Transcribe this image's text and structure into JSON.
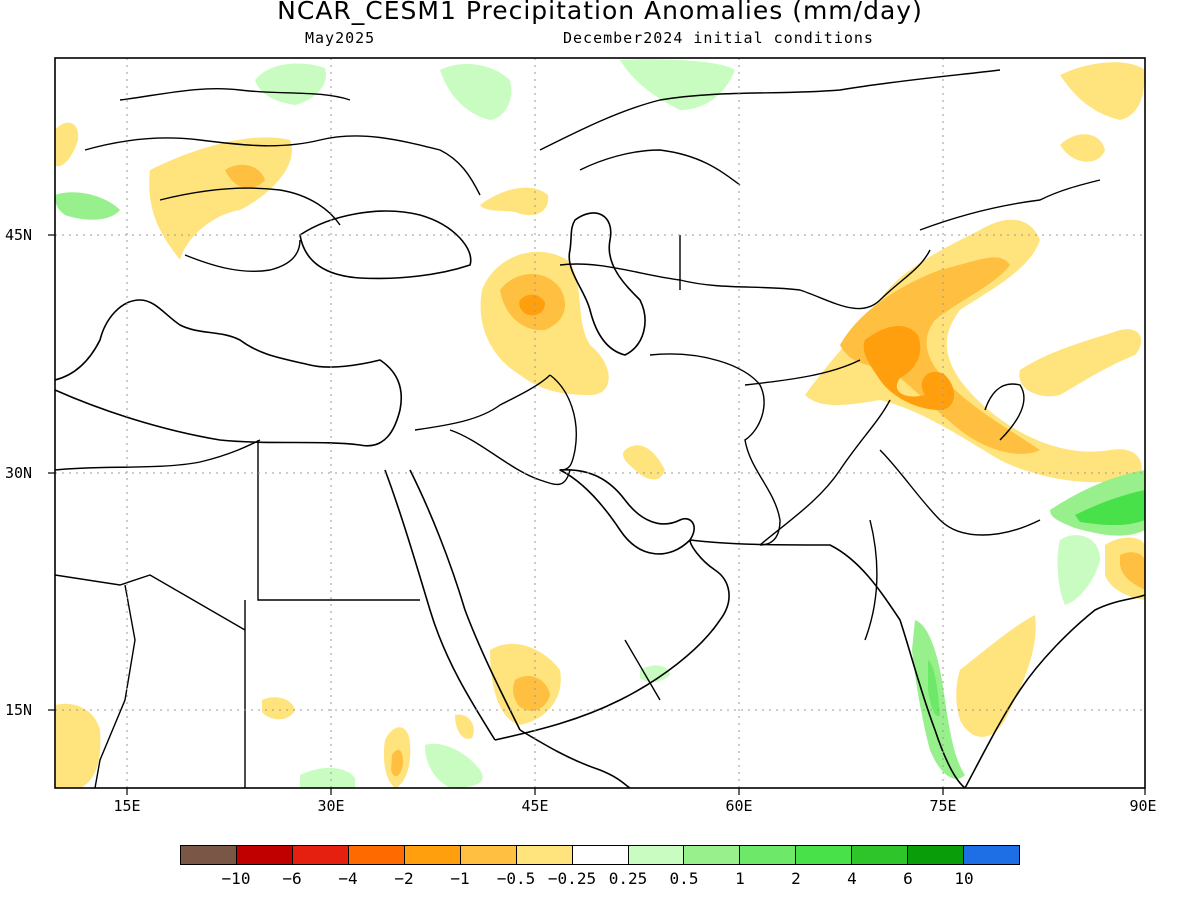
{
  "title": "NCAR_CESM1 Precipitation Anomalies (mm/day)",
  "subtitle_left": "May2025",
  "subtitle_right": "December2024 initial conditions",
  "lat_labels": [
    "45N",
    "30N",
    "15N"
  ],
  "lon_labels": [
    "15E",
    "30E",
    "45E",
    "60E",
    "75E",
    "90E"
  ],
  "colorbar": {
    "colors": [
      "#7a5647",
      "#c00000",
      "#e52010",
      "#ff6a00",
      "#ff9f0e",
      "#ffbf40",
      "#ffe47d",
      "#ffffff",
      "#c8fcc0",
      "#98f08c",
      "#6ee868",
      "#49e14a",
      "#2dc52a",
      "#0a9d0a",
      "#1e6ee6"
    ],
    "labels": [
      "−10",
      "−6",
      "−4",
      "−2",
      "−1",
      "−0.5",
      "−0.25",
      "0.25",
      "0.5",
      "1",
      "2",
      "4",
      "6",
      "10"
    ]
  },
  "map_extent": {
    "lon_min": 10,
    "lon_max": 90,
    "lat_min": 9,
    "lat_max": 53
  }
}
